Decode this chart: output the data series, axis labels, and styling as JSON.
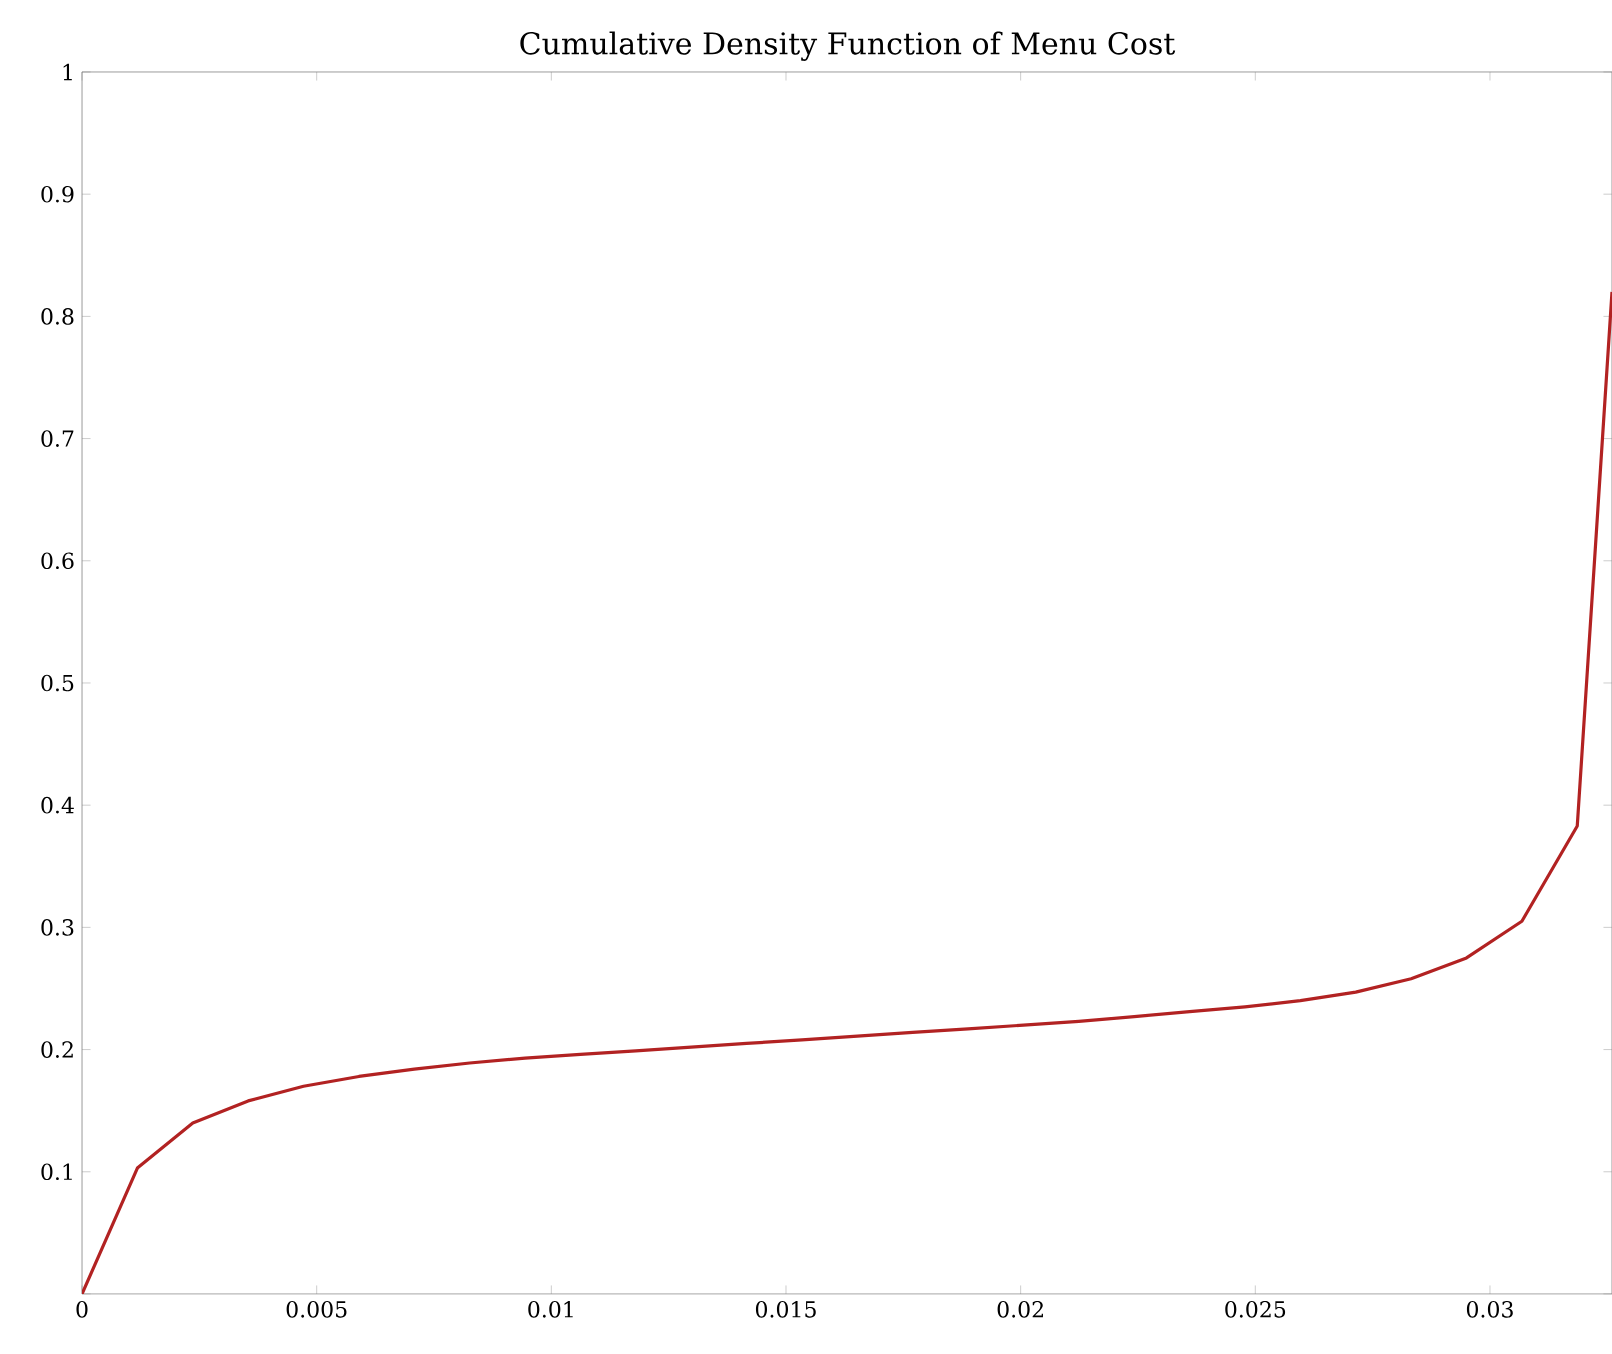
{
  "chart_data": {
    "type": "line",
    "title": "Cumulative Density Function of Menu Cost",
    "x": [
      0,
      0.00118,
      0.00236,
      0.00354,
      0.00472,
      0.0059,
      0.00708,
      0.00826,
      0.00944,
      0.01062,
      0.0118,
      0.01298,
      0.01416,
      0.01534,
      0.01652,
      0.0177,
      0.01888,
      0.02006,
      0.02124,
      0.02242,
      0.0236,
      0.02478,
      0.02596,
      0.02714,
      0.02832,
      0.0295,
      0.03068,
      0.03186,
      0.0326
    ],
    "series": [
      {
        "color": "#b22222",
        "values": [
          0,
          0.103,
          0.14,
          0.158,
          0.17,
          0.178,
          0.184,
          0.189,
          0.193,
          0.196,
          0.199,
          0.202,
          0.205,
          0.208,
          0.211,
          0.214,
          0.217,
          0.22,
          0.223,
          0.227,
          0.231,
          0.235,
          0.24,
          0.247,
          0.258,
          0.275,
          0.305,
          0.383,
          0.82
        ]
      }
    ],
    "xlim": [
      0,
      0.0326
    ],
    "ylim": [
      0,
      1
    ],
    "xticks": [
      0,
      0.005,
      0.01,
      0.015,
      0.02,
      0.025,
      0.03
    ],
    "yticks": [
      {
        "value": 0,
        "label": null
      },
      0.1,
      0.2,
      0.3,
      0.4,
      0.5,
      0.6,
      0.7,
      0.8,
      0.9,
      1
    ],
    "grid": false,
    "marker": "none",
    "line_style": "solid"
  }
}
